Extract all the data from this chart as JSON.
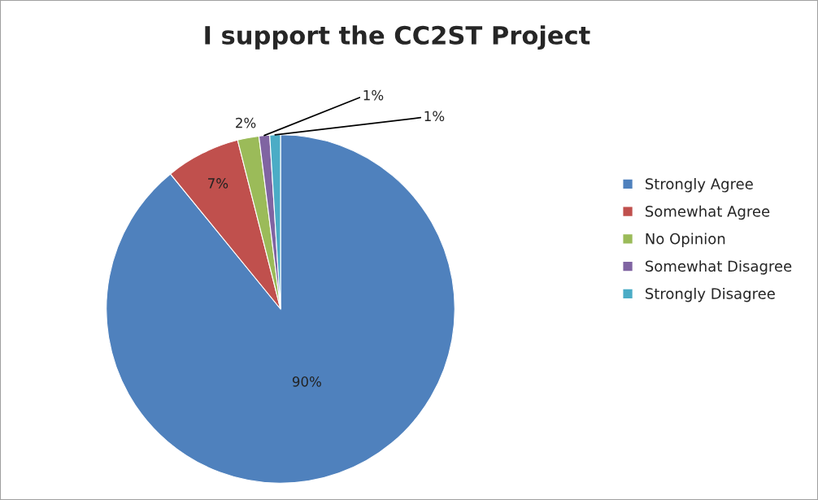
{
  "chart_data": {
    "type": "pie",
    "title": "I support the CC2ST Project",
    "categories": [
      "Strongly Agree",
      "Somewhat Agree",
      "No Opinion",
      "Somewhat Disagree",
      "Strongly Disagree"
    ],
    "values": [
      90,
      7,
      2,
      1,
      1
    ],
    "value_labels": [
      "90%",
      "7%",
      "2%",
      "1%",
      "1%"
    ],
    "colors": [
      "#4f81bd",
      "#c0504d",
      "#9bbb59",
      "#8064a2",
      "#4bacc6"
    ],
    "legend": "right"
  }
}
